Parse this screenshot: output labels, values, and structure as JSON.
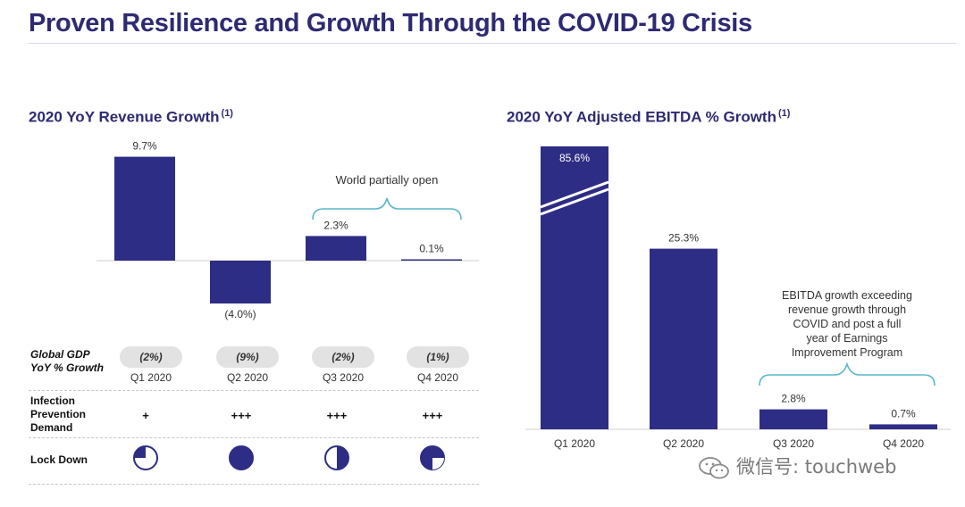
{
  "page": {
    "title": "Proven Resilience and Growth Through the COVID-19 Crisis"
  },
  "left": {
    "title": "2020 YoY Revenue Growth",
    "footnote": "(1)",
    "annotation": "World partially open",
    "table": {
      "gdp_label_line1": "Global GDP",
      "gdp_label_line2": "YoY % Growth",
      "gdp_values": [
        "(2%)",
        "(9%)",
        "(2%)",
        "(1%)"
      ],
      "infection_label_line1": "Infection",
      "infection_label_line2": "Prevention",
      "infection_label_line3": "Demand",
      "infection_values": [
        "+",
        "+++",
        "+++",
        "+++"
      ],
      "lockdown_label": "Lock Down",
      "lockdown_fill": [
        0.25,
        1.0,
        0.5,
        0.75
      ]
    }
  },
  "right": {
    "title": "2020 YoY Adjusted EBITDA % Growth",
    "footnote": "(1)",
    "annotation": [
      "EBITDA growth exceeding",
      "revenue growth through",
      "COVID and post a full",
      "year of Earnings",
      "Improvement Program"
    ]
  },
  "watermark": {
    "text": "微信号: touchweb"
  },
  "colors": {
    "bar": "#2e2d85",
    "title": "#2e2a72",
    "bracket": "#5bb7c8"
  },
  "chart_data": [
    {
      "type": "bar",
      "title": "2020 YoY Revenue Growth",
      "categories": [
        "Q1 2020",
        "Q2 2020",
        "Q3 2020",
        "Q4 2020"
      ],
      "values": [
        9.7,
        -4.0,
        2.3,
        0.1
      ],
      "value_labels": [
        "9.7%",
        "(4.0%)",
        "2.3%",
        "0.1%"
      ],
      "ylim": [
        -4.5,
        10
      ]
    },
    {
      "type": "bar",
      "title": "2020 YoY Adjusted EBITDA % Growth",
      "categories": [
        "Q1 2020",
        "Q2 2020",
        "Q3 2020",
        "Q4 2020"
      ],
      "values": [
        85.6,
        25.3,
        2.8,
        0.7
      ],
      "value_labels": [
        "85.6%",
        "25.3%",
        "2.8%",
        "0.7%"
      ],
      "axis_break_on": "Q1 2020"
    }
  ]
}
